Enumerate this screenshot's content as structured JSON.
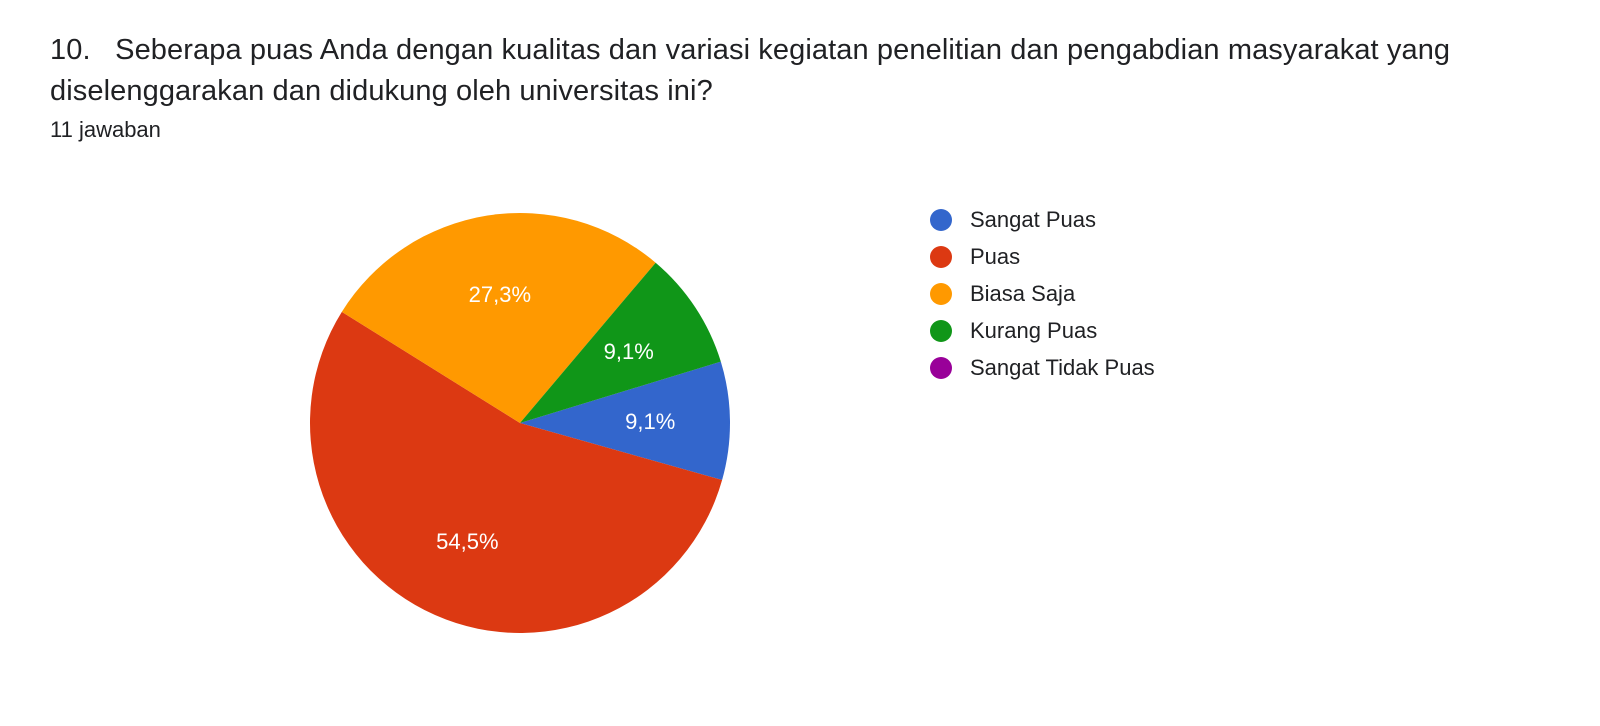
{
  "question": {
    "number": "10.",
    "text": "Seberapa puas Anda dengan kualitas dan variasi kegiatan penelitian dan pengabdian masyarakat yang diselenggarakan dan didukung oleh universitas ini?",
    "responses_label": "11 jawaban"
  },
  "chart": {
    "type": "pie",
    "background_color": "#ffffff",
    "title_fontsize": 29,
    "label_fontsize": 22,
    "legend_fontsize": 22,
    "slice_label_color": "#ffffff",
    "radius": 210,
    "legend_position": "right",
    "slices": [
      {
        "label": "Sangat Puas",
        "color": "#3366cc",
        "value": 9.1,
        "display": "9,1%",
        "show_label": true
      },
      {
        "label": "Puas",
        "color": "#dc3912",
        "value": 54.5,
        "display": "54,5%",
        "show_label": true
      },
      {
        "label": "Biasa Saja",
        "color": "#ff9900",
        "value": 27.3,
        "display": "27,3%",
        "show_label": true
      },
      {
        "label": "Kurang Puas",
        "color": "#109618",
        "value": 9.1,
        "display": "9,1%",
        "show_label": true
      },
      {
        "label": "Sangat Tidak Puas",
        "color": "#990099",
        "value": 0.0,
        "display": "",
        "show_label": false
      }
    ],
    "start_angle_deg": 73
  }
}
